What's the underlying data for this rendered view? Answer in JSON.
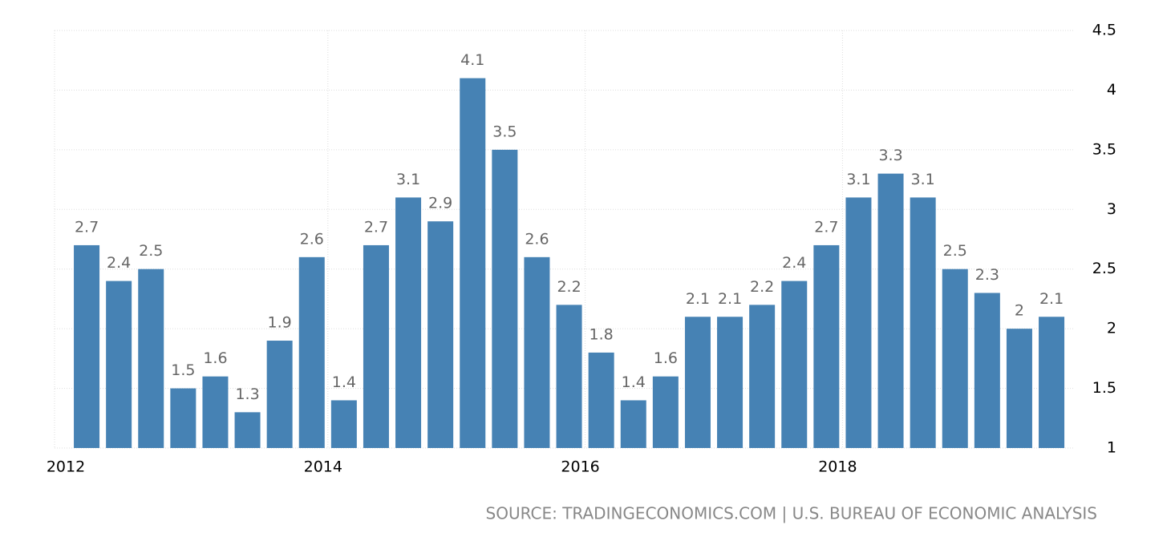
{
  "chart_data": {
    "type": "bar",
    "categories": [
      "2012",
      null,
      null,
      null,
      null,
      null,
      null,
      null,
      "2014",
      null,
      null,
      null,
      null,
      null,
      null,
      null,
      "2016",
      null,
      null,
      null,
      null,
      null,
      null,
      null,
      "2018",
      null,
      null,
      null,
      null,
      null,
      null
    ],
    "values": [
      2.7,
      2.4,
      2.5,
      1.5,
      1.6,
      1.3,
      1.9,
      2.6,
      1.4,
      2.7,
      3.1,
      2.9,
      4.1,
      3.5,
      2.6,
      2.2,
      1.8,
      1.4,
      1.6,
      2.1,
      2.1,
      2.2,
      2.4,
      2.7,
      3.1,
      3.3,
      3.1,
      2.5,
      2.3,
      2,
      2.1
    ],
    "color": "#4682b4",
    "ylim": [
      1,
      4.5
    ],
    "yticks": [
      1,
      1.5,
      2,
      2.5,
      3,
      3.5,
      4,
      4.5
    ],
    "grid": true,
    "source": "SOURCE: TRADINGECONOMICS.COM | U.S. BUREAU OF ECONOMIC ANALYSIS"
  }
}
